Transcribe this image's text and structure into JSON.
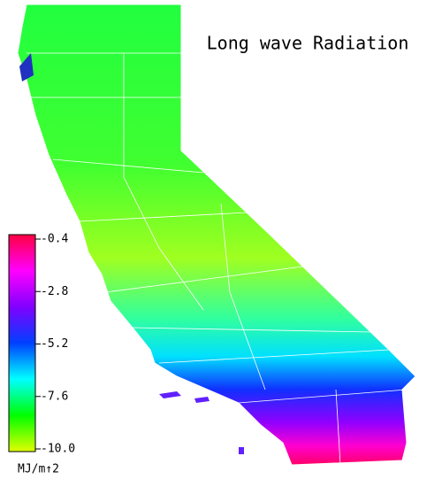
{
  "title": "Long wave Radiation",
  "colorbar": {
    "lim": [
      -10,
      -0.4
    ],
    "ticks": [
      -0.4,
      -2.8,
      -5.2,
      -7.6,
      {
        "value": -10,
        "label": "-10.0"
      }
    ],
    "colors": [
      "#e0ff00",
      "#00ff00",
      "#00ffff",
      "#0040ff",
      "#8000ff",
      "#ff00ff",
      "#ff0040"
    ],
    "unit": "MJ/m↑2"
  }
}
